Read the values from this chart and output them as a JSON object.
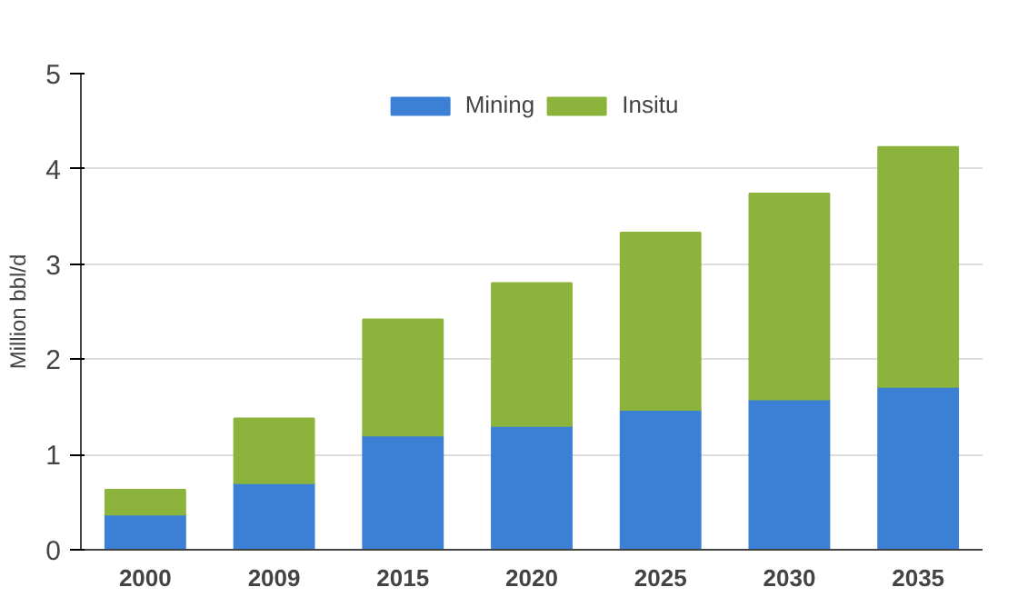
{
  "chart_data": {
    "type": "bar",
    "stacked": true,
    "ylabel": "Million bbl/d",
    "categories": [
      "2000",
      "2009",
      "2015",
      "2020",
      "2025",
      "2030",
      "2035"
    ],
    "series": [
      {
        "name": "Mining",
        "color": "#3c80d6",
        "values": [
          0.37,
          0.7,
          1.2,
          1.3,
          1.47,
          1.58,
          1.71
        ]
      },
      {
        "name": "Insitu",
        "color": "#8cb43c",
        "values": [
          0.26,
          0.68,
          1.22,
          1.5,
          1.86,
          2.16,
          2.52
        ]
      }
    ],
    "ylim": [
      0,
      5
    ],
    "yticks": [
      0,
      1,
      2,
      3,
      4,
      5
    ],
    "grid": "y",
    "legend": "top"
  }
}
